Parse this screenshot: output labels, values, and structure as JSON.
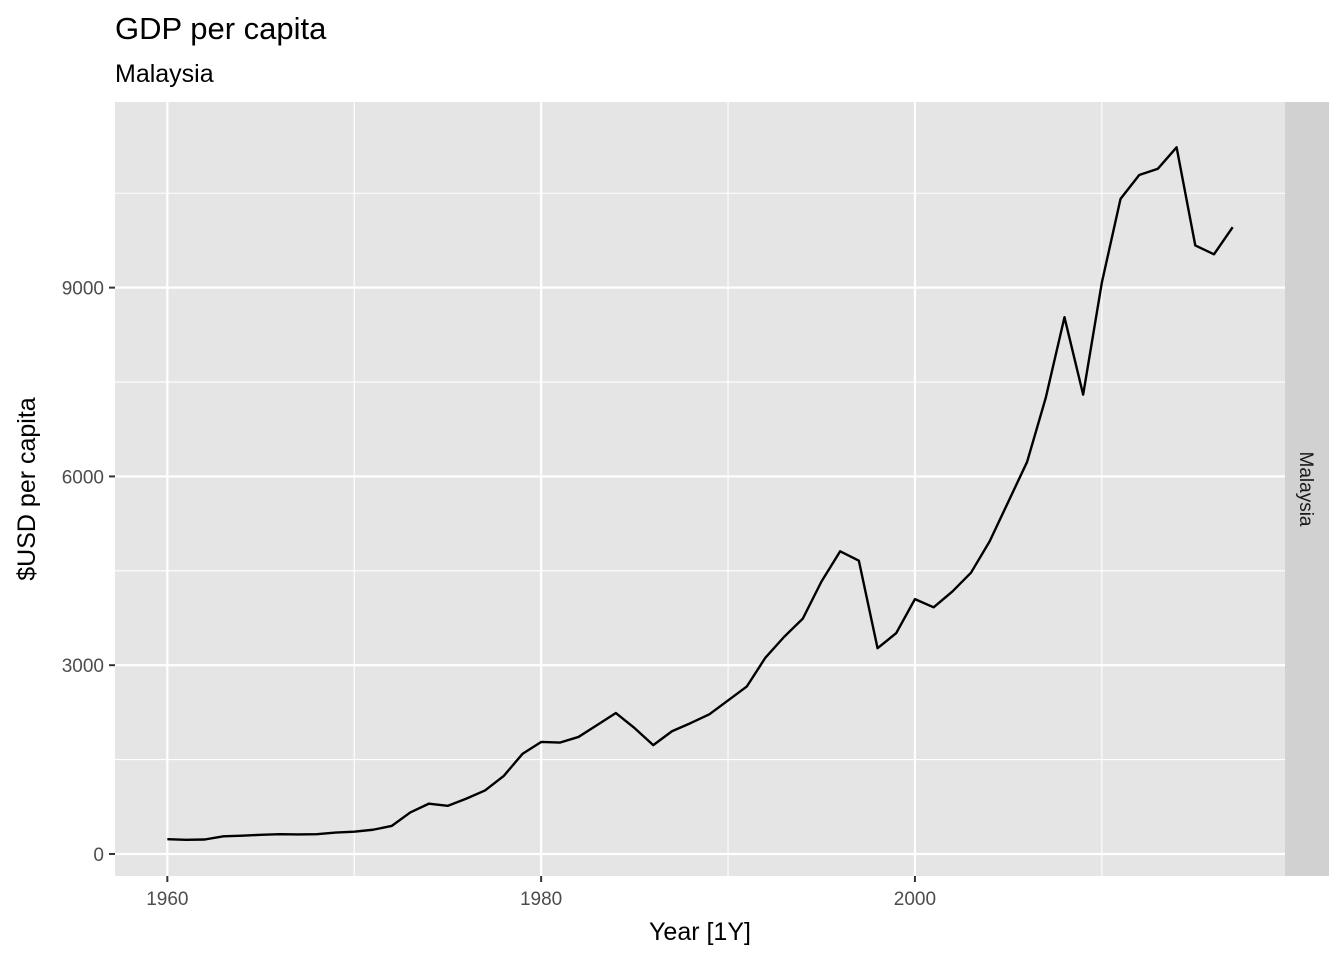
{
  "chart_data": {
    "type": "line",
    "title": "GDP per capita",
    "subtitle": "Malaysia",
    "xlabel": "Year [1Y]",
    "ylabel": "$USD per capita",
    "facet_label": "Malaysia",
    "x_ticks": [
      "1960",
      "1980",
      "2000"
    ],
    "y_ticks": [
      "0",
      "3000",
      "6000",
      "9000"
    ],
    "xlim": [
      1957.2,
      2019.8
    ],
    "ylim": [
      -350,
      11950
    ],
    "grid": true,
    "line_color": "#000000",
    "panel_color": "#e5e5e5",
    "strip_color": "#d1d1d1",
    "series": [
      {
        "x": [
          1960,
          1961,
          1962,
          1963,
          1964,
          1965,
          1966,
          1967,
          1968,
          1969,
          1970,
          1971,
          1972,
          1973,
          1974,
          1975,
          1976,
          1977,
          1978,
          1979,
          1980,
          1981,
          1982,
          1983,
          1984,
          1985,
          1986,
          1987,
          1988,
          1989,
          1990,
          1991,
          1992,
          1993,
          1994,
          1995,
          1996,
          1997,
          1998,
          1999,
          2000,
          2001,
          2002,
          2003,
          2004,
          2005,
          2006,
          2007,
          2008,
          2009,
          2010,
          2011,
          2012,
          2013,
          2014,
          2015,
          2016,
          2017
        ],
        "values": [
          235,
          225,
          230,
          280,
          290,
          305,
          315,
          310,
          315,
          340,
          355,
          385,
          445,
          660,
          800,
          765,
          880,
          1010,
          1240,
          1590,
          1780,
          1770,
          1860,
          2050,
          2240,
          2000,
          1730,
          1950,
          2080,
          2220,
          2440,
          2660,
          3120,
          3450,
          3740,
          4330,
          4810,
          4660,
          3270,
          3510,
          4050,
          3920,
          4170,
          4470,
          4970,
          5600,
          6230,
          7250,
          8530,
          7300,
          9080,
          10410,
          10790,
          10890,
          11230,
          9670,
          9530,
          9960
        ]
      }
    ]
  }
}
